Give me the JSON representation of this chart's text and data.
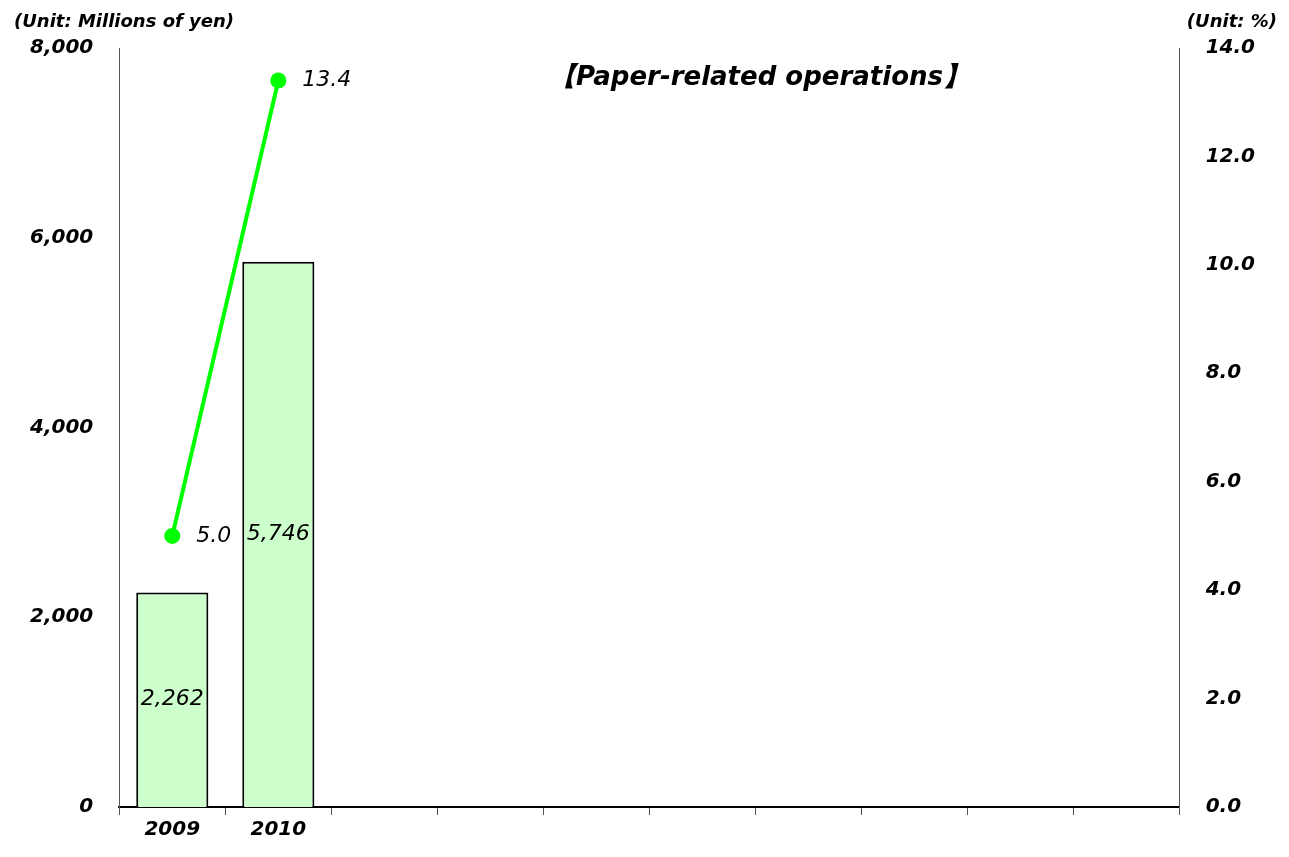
{
  "chart_data": {
    "type": "bar",
    "title": "【Paper-related operations】",
    "ylabel": "(Unit: Millions of yen)",
    "y2label": "(Unit: %)",
    "categories": [
      "2009",
      "2010",
      null,
      null,
      null,
      null,
      null,
      null,
      null,
      null
    ],
    "series": [
      {
        "color": "#ccffcc",
        "values": [
          2262,
          5746,
          null,
          null,
          null,
          null,
          null,
          null,
          null,
          null
        ],
        "value_labels": [
          "2,262",
          "5,746",
          null,
          null,
          null,
          null,
          null,
          null,
          null,
          null
        ]
      },
      {
        "type": "line",
        "axis": "y2",
        "color": "#00ff00",
        "marker": "circle",
        "values": [
          5.0,
          13.4,
          null,
          null,
          null,
          null,
          null,
          null,
          null,
          null
        ],
        "value_labels": [
          "5.0",
          "13.4",
          null,
          null,
          null,
          null,
          null,
          null,
          null,
          null
        ]
      }
    ],
    "ylim": [
      0,
      8000
    ],
    "yticks": [
      0,
      {
        "value": 2000,
        "label": "2,000"
      },
      {
        "value": 4000,
        "label": "4,000"
      },
      {
        "value": 6000,
        "label": "6,000"
      },
      {
        "value": 8000,
        "label": "8,000"
      }
    ],
    "y2lim": [
      0,
      14
    ],
    "y2ticks": [
      {
        "value": 0,
        "label": "0.0"
      },
      {
        "value": 2,
        "label": "2.0"
      },
      {
        "value": 4,
        "label": "4.0"
      },
      {
        "value": 6,
        "label": "6.0"
      },
      {
        "value": 8,
        "label": "8.0"
      },
      {
        "value": 10,
        "label": "10.0"
      },
      {
        "value": 12,
        "label": "12.0"
      },
      {
        "value": 14,
        "label": "14.0"
      }
    ],
    "grid": false,
    "legend": false
  }
}
